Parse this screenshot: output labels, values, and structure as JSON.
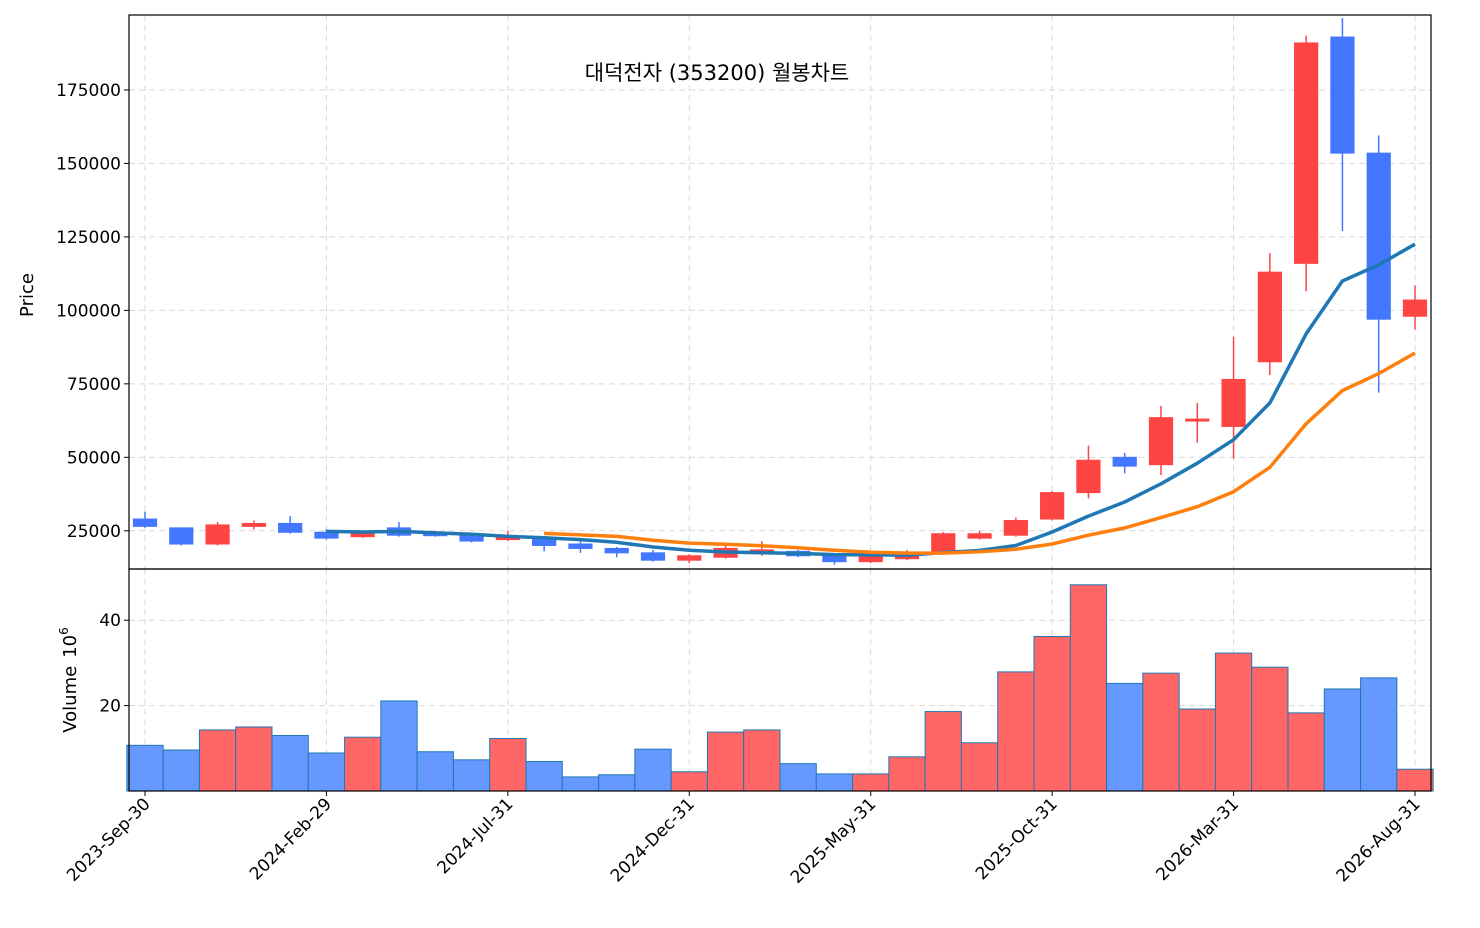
{
  "chart_data": {
    "type": "candlestick",
    "title": "대덕전자 (353200) 월봉차트",
    "price_panel": {
      "ylabel": "Price",
      "ylim": [
        12000,
        200500
      ],
      "yticks": [
        25000,
        50000,
        75000,
        100000,
        125000,
        150000,
        175000
      ],
      "grid": true
    },
    "volume_panel": {
      "ylabel": "Volume",
      "ylabel_exponent": "10",
      "ylabel_exponent_power": "6",
      "ylim": [
        0,
        52
      ],
      "yticks": [
        20,
        40
      ],
      "grid": true
    },
    "x_tick_labels": [
      "2023-Sep-30",
      "2024-Feb-29",
      "2024-Jul-31",
      "2024-Dec-31",
      "2025-May-31",
      "2025-Oct-31",
      "2026-Mar-31",
      "2026-Aug-31"
    ],
    "x_tick_indices": [
      0,
      5,
      10,
      15,
      20,
      25,
      30,
      35
    ],
    "colors": {
      "up": "#ff4444",
      "down": "#4477ff",
      "vol_up": "#ff6666",
      "vol_down": "#6699ff",
      "vol_edge": "#1f77b4",
      "ma_short": "#1f77b4",
      "ma_long": "#ff7f0e"
    },
    "ohlc": [
      {
        "date": "2023-Sep-30",
        "o": 29000,
        "h": 31500,
        "l": 26000,
        "c": 26500,
        "v": 10.7
      },
      {
        "date": "2023-Oct-31",
        "o": 26000,
        "h": 26000,
        "l": 20000,
        "c": 20500,
        "v": 9.6
      },
      {
        "date": "2023-Nov-30",
        "o": 20500,
        "h": 28000,
        "l": 20000,
        "c": 27000,
        "v": 14.3
      },
      {
        "date": "2023-Dec-31",
        "o": 26500,
        "h": 28500,
        "l": 25500,
        "c": 27500,
        "v": 15.0
      },
      {
        "date": "2024-Jan-31",
        "o": 27500,
        "h": 30000,
        "l": 24000,
        "c": 24500,
        "v": 13.0
      },
      {
        "date": "2024-Feb-29",
        "o": 24500,
        "h": 25500,
        "l": 22000,
        "c": 22500,
        "v": 8.9
      },
      {
        "date": "2024-Mar-31",
        "o": 23000,
        "h": 25000,
        "l": 22500,
        "c": 24500,
        "v": 12.6
      },
      {
        "date": "2024-Apr-30",
        "o": 26000,
        "h": 28000,
        "l": 23000,
        "c": 23500,
        "v": 21.1
      },
      {
        "date": "2024-May-31",
        "o": 24000,
        "h": 25000,
        "l": 23000,
        "c": 23500,
        "v": 9.2
      },
      {
        "date": "2024-Jun-30",
        "o": 23500,
        "h": 24000,
        "l": 21000,
        "c": 21500,
        "v": 7.3
      },
      {
        "date": "2024-Jul-31",
        "o": 22000,
        "h": 25000,
        "l": 21500,
        "c": 23000,
        "v": 12.3
      },
      {
        "date": "2024-Aug-31",
        "o": 22500,
        "h": 23000,
        "l": 18000,
        "c": 20000,
        "v": 6.9
      },
      {
        "date": "2024-Sep-30",
        "o": 20500,
        "h": 21500,
        "l": 17500,
        "c": 19000,
        "v": 3.3
      },
      {
        "date": "2024-Oct-31",
        "o": 19000,
        "h": 19500,
        "l": 16000,
        "c": 17500,
        "v": 3.8
      },
      {
        "date": "2024-Nov-30",
        "o": 17500,
        "h": 18500,
        "l": 14500,
        "c": 15000,
        "v": 9.8
      },
      {
        "date": "2024-Dec-31",
        "o": 15000,
        "h": 17000,
        "l": 14000,
        "c": 16500,
        "v": 4.5
      },
      {
        "date": "2025-Jan-31",
        "o": 16000,
        "h": 20000,
        "l": 15500,
        "c": 19000,
        "v": 13.8
      },
      {
        "date": "2025-Feb-28",
        "o": 17500,
        "h": 21500,
        "l": 16500,
        "c": 18500,
        "v": 14.3
      },
      {
        "date": "2025-Mar-31",
        "o": 18000,
        "h": 18500,
        "l": 16000,
        "c": 16500,
        "v": 6.4
      },
      {
        "date": "2025-Apr-30",
        "o": 16500,
        "h": 16500,
        "l": 13500,
        "c": 14500,
        "v": 4.0
      },
      {
        "date": "2025-May-31",
        "o": 14500,
        "h": 17500,
        "l": 14000,
        "c": 17000,
        "v": 4.0
      },
      {
        "date": "2025-Jun-30",
        "o": 15500,
        "h": 18500,
        "l": 15000,
        "c": 17500,
        "v": 8.0
      },
      {
        "date": "2025-Jul-31",
        "o": 18000,
        "h": 24500,
        "l": 17500,
        "c": 24000,
        "v": 18.6
      },
      {
        "date": "2025-Aug-31",
        "o": 22500,
        "h": 25000,
        "l": 22000,
        "c": 24000,
        "v": 11.3
      },
      {
        "date": "2025-Sep-30",
        "o": 23500,
        "h": 29500,
        "l": 23000,
        "c": 28500,
        "v": 27.9
      },
      {
        "date": "2025-Oct-31",
        "o": 29000,
        "h": 38500,
        "l": 28500,
        "c": 38000,
        "v": 36.2
      },
      {
        "date": "2025-Nov-30",
        "o": 38000,
        "h": 54000,
        "l": 36000,
        "c": 49000,
        "v": 48.3
      },
      {
        "date": "2025-Dec-31",
        "o": 50000,
        "h": 51500,
        "l": 44500,
        "c": 47000,
        "v": 25.2
      },
      {
        "date": "2026-Jan-31",
        "o": 47500,
        "h": 67500,
        "l": 44000,
        "c": 63500,
        "v": 27.6
      },
      {
        "date": "2026-Feb-28",
        "o": 62500,
        "h": 68500,
        "l": 55000,
        "c": 63000,
        "v": 19.2
      },
      {
        "date": "2026-Mar-31",
        "o": 60500,
        "h": 91000,
        "l": 49500,
        "c": 76500,
        "v": 32.3
      },
      {
        "date": "2026-Apr-30",
        "o": 82500,
        "h": 119500,
        "l": 78000,
        "c": 113000,
        "v": 29.0
      },
      {
        "date": "2026-May-31",
        "o": 116000,
        "h": 193500,
        "l": 106500,
        "c": 191000,
        "v": 18.3
      },
      {
        "date": "2026-Jun-30",
        "o": 193000,
        "h": 199500,
        "l": 127000,
        "c": 153500,
        "v": 23.9
      },
      {
        "date": "2026-Jul-31",
        "o": 153500,
        "h": 159500,
        "l": 72000,
        "c": 97000,
        "v": 26.5
      },
      {
        "date": "2026-Aug-31",
        "o": 98000,
        "h": 108500,
        "l": 93500,
        "c": 103500,
        "v": 5.1
      }
    ],
    "series": [
      {
        "values": [
          null,
          null,
          null,
          null,
          null,
          24800,
          24600,
          24800,
          24300,
          23800,
          23100,
          22600,
          22000,
          21100,
          19500,
          18400,
          17800,
          17500,
          17300,
          16900,
          16800,
          16700,
          17600,
          18300,
          20000,
          24600,
          30000,
          34800,
          41000,
          48000,
          56000,
          68500,
          92000,
          110000,
          115500,
          122500
        ]
      },
      {
        "values": [
          null,
          null,
          null,
          null,
          null,
          null,
          null,
          null,
          null,
          null,
          null,
          24100,
          23600,
          23100,
          21800,
          20800,
          20400,
          19900,
          19200,
          18400,
          17700,
          17400,
          17400,
          17900,
          18700,
          20500,
          23500,
          26000,
          29500,
          33200,
          38300,
          46600,
          61400,
          72700,
          78500,
          85500
        ]
      }
    ]
  }
}
